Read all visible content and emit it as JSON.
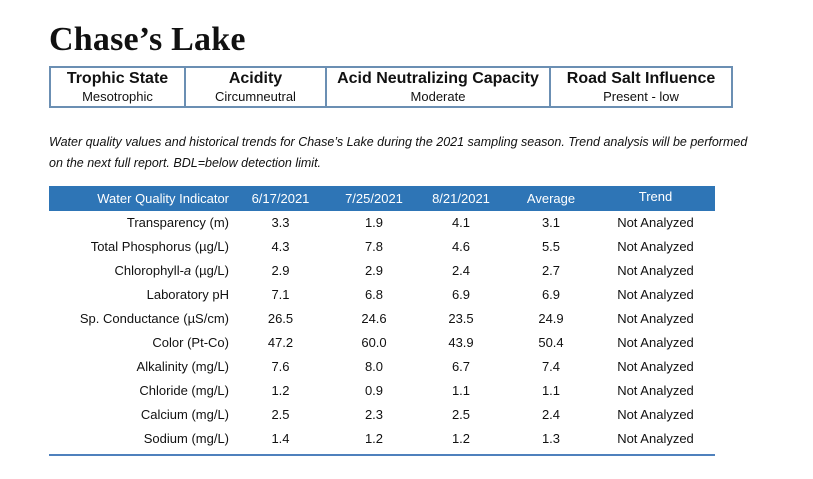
{
  "title": "Chase’s Lake",
  "summary": [
    {
      "label": "Trophic State",
      "value": "Mesotrophic"
    },
    {
      "label": "Acidity",
      "value": "Circumneutral"
    },
    {
      "label": "Acid Neutralizing Capacity",
      "value": "Moderate"
    },
    {
      "label": "Road Salt Influence",
      "value": "Present - low"
    }
  ],
  "caption": "Water quality values and historical trends for Chase’s Lake during the 2021 sampling season. Trend analysis will be performed on the next full report. BDL=below detection limit.",
  "table": {
    "header_color": "#2e75b6",
    "columns": [
      "Water Quality Indicator",
      "6/17/2021",
      "7/25/2021",
      "8/21/2021",
      "Average",
      "Trend"
    ],
    "rows": [
      [
        "Transparency (m)",
        "3.3",
        "1.9",
        "4.1",
        "3.1",
        "Not Analyzed"
      ],
      [
        "Total Phosphorus (µg/L)",
        "4.3",
        "7.8",
        "4.6",
        "5.5",
        "Not Analyzed"
      ],
      [
        "Chlorophyll-a (µg/L)",
        "2.9",
        "2.9",
        "2.4",
        "2.7",
        "Not Analyzed"
      ],
      [
        "Laboratory pH",
        "7.1",
        "6.8",
        "6.9",
        "6.9",
        "Not Analyzed"
      ],
      [
        "Sp. Conductance (µS/cm)",
        "26.5",
        "24.6",
        "23.5",
        "24.9",
        "Not Analyzed"
      ],
      [
        "Color (Pt-Co)",
        "47.2",
        "60.0",
        "43.9",
        "50.4",
        "Not Analyzed"
      ],
      [
        "Alkalinity (mg/L)",
        "7.6",
        "8.0",
        "6.7",
        "7.4",
        "Not Analyzed"
      ],
      [
        "Chloride (mg/L)",
        "1.2",
        "0.9",
        "1.1",
        "1.1",
        "Not Analyzed"
      ],
      [
        "Calcium (mg/L)",
        "2.5",
        "2.3",
        "2.5",
        "2.4",
        "Not Analyzed"
      ],
      [
        "Sodium (mg/L)",
        "1.4",
        "1.2",
        "1.2",
        "1.3",
        "Not Analyzed"
      ]
    ]
  }
}
